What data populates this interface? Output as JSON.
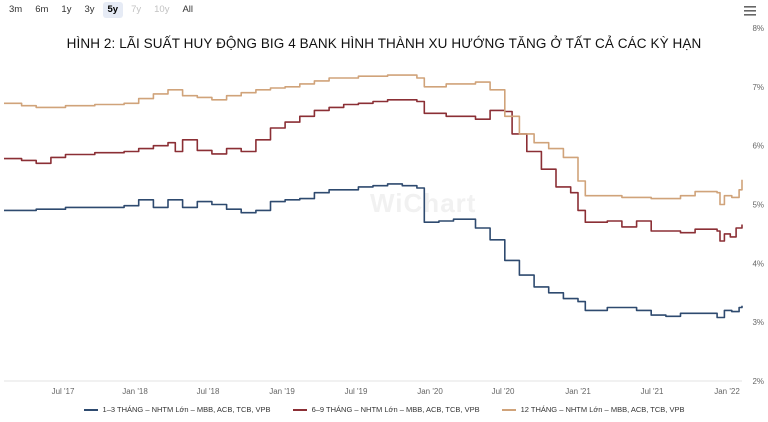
{
  "range_selector": {
    "buttons": [
      {
        "label": "3m",
        "state": "normal"
      },
      {
        "label": "6m",
        "state": "normal"
      },
      {
        "label": "1y",
        "state": "normal"
      },
      {
        "label": "3y",
        "state": "normal"
      },
      {
        "label": "5y",
        "state": "active"
      },
      {
        "label": "7y",
        "state": "disabled"
      },
      {
        "label": "10y",
        "state": "disabled"
      },
      {
        "label": "All",
        "state": "normal"
      }
    ]
  },
  "watermark": "WiChart",
  "chart_data": {
    "type": "line",
    "title": "HÌNH 2: LÃI SUẤT HUY ĐỘNG BIG 4 BANK HÌNH THÀNH XU HƯỚNG TĂNG Ở TẤT CẢ CÁC KỲ HẠN",
    "x_ticks": [
      "Jul '17",
      "Jan '18",
      "Jul '18",
      "Jan '19",
      "Jul '19",
      "Jan '20",
      "Jul '20",
      "Jan '21",
      "Jul '21",
      "Jan '22"
    ],
    "y_ticks": [
      "2%",
      "3%",
      "4%",
      "5%",
      "6%",
      "7%",
      "8%"
    ],
    "ylim": [
      2,
      8
    ],
    "xlim": [
      2017.08,
      2022.12
    ],
    "grid": false,
    "legend_position": "bottom",
    "series": [
      {
        "name": "1–3 THÁNG – NHTM Lớn – MBB, ACB, TCB, VPB",
        "color": "#2e4a6f",
        "points": [
          [
            2017.08,
            4.9
          ],
          [
            2017.2,
            4.9
          ],
          [
            2017.3,
            4.92
          ],
          [
            2017.5,
            4.95
          ],
          [
            2017.9,
            4.98
          ],
          [
            2018.0,
            5.08
          ],
          [
            2018.1,
            4.95
          ],
          [
            2018.2,
            5.08
          ],
          [
            2018.3,
            4.95
          ],
          [
            2018.4,
            5.05
          ],
          [
            2018.5,
            5.0
          ],
          [
            2018.6,
            4.92
          ],
          [
            2018.7,
            4.86
          ],
          [
            2018.8,
            4.9
          ],
          [
            2018.9,
            5.05
          ],
          [
            2019.0,
            5.08
          ],
          [
            2019.1,
            5.1
          ],
          [
            2019.2,
            5.2
          ],
          [
            2019.3,
            5.25
          ],
          [
            2019.4,
            5.25
          ],
          [
            2019.5,
            5.3
          ],
          [
            2019.6,
            5.32
          ],
          [
            2019.7,
            5.35
          ],
          [
            2019.8,
            5.32
          ],
          [
            2019.9,
            5.28
          ],
          [
            2019.95,
            4.7
          ],
          [
            2020.05,
            4.72
          ],
          [
            2020.15,
            4.75
          ],
          [
            2020.3,
            4.6
          ],
          [
            2020.4,
            4.4
          ],
          [
            2020.5,
            4.05
          ],
          [
            2020.6,
            3.8
          ],
          [
            2020.7,
            3.6
          ],
          [
            2020.8,
            3.5
          ],
          [
            2020.9,
            3.4
          ],
          [
            2021.0,
            3.35
          ],
          [
            2021.05,
            3.2
          ],
          [
            2021.2,
            3.25
          ],
          [
            2021.4,
            3.2
          ],
          [
            2021.5,
            3.12
          ],
          [
            2021.6,
            3.1
          ],
          [
            2021.7,
            3.15
          ],
          [
            2021.9,
            3.15
          ],
          [
            2021.95,
            3.08
          ],
          [
            2022.0,
            3.2
          ],
          [
            2022.05,
            3.18
          ],
          [
            2022.1,
            3.25
          ],
          [
            2022.12,
            3.28
          ]
        ]
      },
      {
        "name": "6–9 THÁNG – NHTM Lớn – MBB, ACB, TCB, VPB",
        "color": "#8b2f35",
        "points": [
          [
            2017.08,
            5.78
          ],
          [
            2017.2,
            5.75
          ],
          [
            2017.3,
            5.7
          ],
          [
            2017.4,
            5.8
          ],
          [
            2017.5,
            5.85
          ],
          [
            2017.7,
            5.88
          ],
          [
            2017.9,
            5.9
          ],
          [
            2018.0,
            5.95
          ],
          [
            2018.1,
            6.0
          ],
          [
            2018.2,
            6.05
          ],
          [
            2018.25,
            5.9
          ],
          [
            2018.3,
            6.1
          ],
          [
            2018.4,
            5.92
          ],
          [
            2018.5,
            5.86
          ],
          [
            2018.6,
            5.95
          ],
          [
            2018.7,
            5.9
          ],
          [
            2018.8,
            6.1
          ],
          [
            2018.9,
            6.3
          ],
          [
            2019.0,
            6.4
          ],
          [
            2019.1,
            6.5
          ],
          [
            2019.2,
            6.6
          ],
          [
            2019.3,
            6.65
          ],
          [
            2019.4,
            6.7
          ],
          [
            2019.5,
            6.72
          ],
          [
            2019.6,
            6.75
          ],
          [
            2019.7,
            6.78
          ],
          [
            2019.8,
            6.78
          ],
          [
            2019.9,
            6.75
          ],
          [
            2019.95,
            6.55
          ],
          [
            2020.1,
            6.5
          ],
          [
            2020.3,
            6.45
          ],
          [
            2020.4,
            6.6
          ],
          [
            2020.5,
            6.58
          ],
          [
            2020.55,
            6.2
          ],
          [
            2020.65,
            5.9
          ],
          [
            2020.75,
            5.6
          ],
          [
            2020.85,
            5.3
          ],
          [
            2020.95,
            5.2
          ],
          [
            2021.0,
            4.9
          ],
          [
            2021.05,
            4.7
          ],
          [
            2021.2,
            4.72
          ],
          [
            2021.3,
            4.62
          ],
          [
            2021.4,
            4.72
          ],
          [
            2021.5,
            4.55
          ],
          [
            2021.7,
            4.52
          ],
          [
            2021.8,
            4.58
          ],
          [
            2021.95,
            4.55
          ],
          [
            2021.97,
            4.38
          ],
          [
            2022.0,
            4.5
          ],
          [
            2022.04,
            4.45
          ],
          [
            2022.08,
            4.6
          ],
          [
            2022.12,
            4.66
          ]
        ]
      },
      {
        "name": "12 THÁNG – NHTM Lớn – MBB, ACB, TCB, VPB",
        "color": "#d0a37a",
        "points": [
          [
            2017.08,
            6.72
          ],
          [
            2017.2,
            6.68
          ],
          [
            2017.3,
            6.65
          ],
          [
            2017.5,
            6.68
          ],
          [
            2017.7,
            6.7
          ],
          [
            2017.9,
            6.72
          ],
          [
            2018.0,
            6.8
          ],
          [
            2018.1,
            6.88
          ],
          [
            2018.2,
            6.95
          ],
          [
            2018.3,
            6.85
          ],
          [
            2018.4,
            6.82
          ],
          [
            2018.5,
            6.78
          ],
          [
            2018.6,
            6.85
          ],
          [
            2018.7,
            6.9
          ],
          [
            2018.8,
            6.95
          ],
          [
            2018.9,
            6.98
          ],
          [
            2019.0,
            7.0
          ],
          [
            2019.1,
            7.05
          ],
          [
            2019.2,
            7.1
          ],
          [
            2019.3,
            7.15
          ],
          [
            2019.4,
            7.15
          ],
          [
            2019.5,
            7.18
          ],
          [
            2019.6,
            7.18
          ],
          [
            2019.7,
            7.2
          ],
          [
            2019.8,
            7.2
          ],
          [
            2019.9,
            7.15
          ],
          [
            2019.95,
            7.0
          ],
          [
            2020.1,
            7.05
          ],
          [
            2020.3,
            7.08
          ],
          [
            2020.4,
            6.95
          ],
          [
            2020.5,
            6.5
          ],
          [
            2020.6,
            6.2
          ],
          [
            2020.7,
            6.05
          ],
          [
            2020.8,
            5.95
          ],
          [
            2020.9,
            5.8
          ],
          [
            2021.0,
            5.4
          ],
          [
            2021.05,
            5.15
          ],
          [
            2021.2,
            5.15
          ],
          [
            2021.3,
            5.12
          ],
          [
            2021.5,
            5.1
          ],
          [
            2021.7,
            5.15
          ],
          [
            2021.8,
            5.22
          ],
          [
            2021.95,
            5.2
          ],
          [
            2021.97,
            5.0
          ],
          [
            2022.0,
            5.15
          ],
          [
            2022.05,
            5.12
          ],
          [
            2022.1,
            5.25
          ],
          [
            2022.12,
            5.42
          ]
        ]
      }
    ]
  }
}
